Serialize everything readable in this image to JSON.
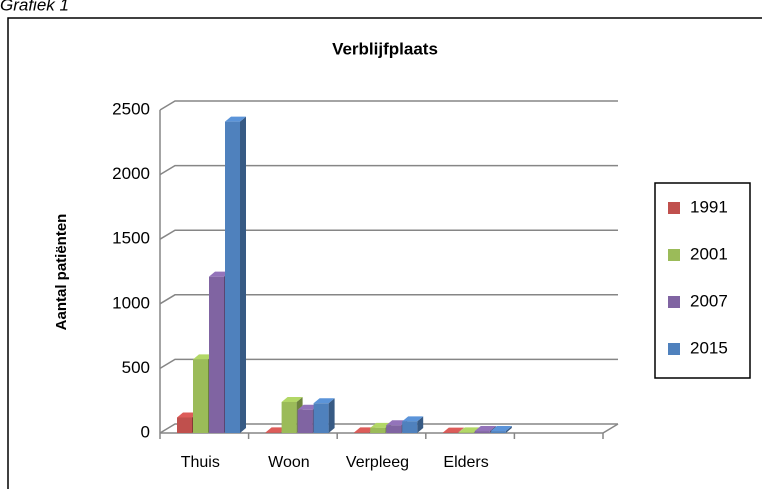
{
  "caption": "Grafiek 1",
  "chart_data": {
    "type": "bar3d",
    "title": "Verblijfplaats",
    "y_label": "Aantal patiënten",
    "categories": [
      "Thuis",
      "Woon",
      "Verpleeg",
      "Elders",
      null
    ],
    "series": [
      {
        "name": "1991",
        "color": "#c0504d",
        "values": [
          120,
          5,
          5,
          3,
          null
        ]
      },
      {
        "name": "2001",
        "color": "#9bbb59",
        "values": [
          570,
          240,
          40,
          5,
          null
        ]
      },
      {
        "name": "2007",
        "color": "#8064a2",
        "values": [
          1210,
          180,
          60,
          15,
          null
        ]
      },
      {
        "name": "2015",
        "color": "#4f81bd",
        "values": [
          2410,
          230,
          90,
          15,
          null
        ]
      }
    ],
    "ylim": [
      0,
      2500
    ],
    "yticks": [
      0,
      500,
      1000,
      1500,
      2000,
      2500
    ],
    "grid": true,
    "legend": "right"
  }
}
